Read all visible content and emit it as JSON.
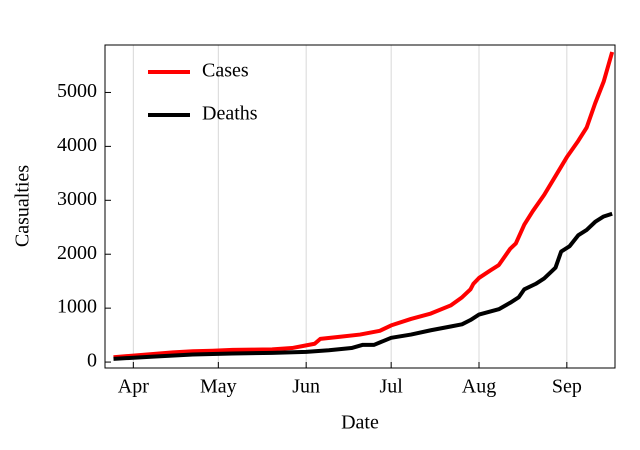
{
  "chart_data": {
    "type": "line",
    "x_label": "Date",
    "y_label": "Casualties",
    "xlim": [
      81,
      261
    ],
    "ylim": [
      -110,
      5880
    ],
    "xticks": [
      {
        "value": 91,
        "label": "Apr"
      },
      {
        "value": 121,
        "label": "May"
      },
      {
        "value": 152,
        "label": "Jun"
      },
      {
        "value": 182,
        "label": "Jul"
      },
      {
        "value": 213,
        "label": "Aug"
      },
      {
        "value": 244,
        "label": "Sep"
      }
    ],
    "yticks": [
      0,
      1000,
      2000,
      3000,
      4000,
      5000
    ],
    "grid": true,
    "legend": "upper left",
    "series": [
      {
        "name": "Cases",
        "color": "#ff0000",
        "x": [
          84,
          91,
          98,
          105,
          112,
          119,
          126,
          133,
          140,
          147,
          152,
          155,
          157,
          164,
          171,
          178,
          182,
          189,
          196,
          203,
          207,
          210,
          211,
          213,
          217,
          220,
          224,
          226,
          229,
          232,
          236,
          240,
          244,
          248,
          251,
          254,
          257,
          260
        ],
        "values": [
          90,
          120,
          150,
          180,
          200,
          210,
          225,
          230,
          235,
          260,
          310,
          340,
          430,
          470,
          510,
          580,
          680,
          800,
          900,
          1050,
          1200,
          1350,
          1450,
          1560,
          1700,
          1800,
          2100,
          2200,
          2550,
          2800,
          3100,
          3450,
          3800,
          4100,
          4350,
          4800,
          5200,
          5750
        ]
      },
      {
        "name": "Deaths",
        "color": "#000000",
        "x": [
          84,
          98,
          112,
          126,
          140,
          152,
          160,
          168,
          172,
          176,
          182,
          189,
          196,
          203,
          207,
          210,
          213,
          220,
          224,
          227,
          229,
          233,
          236,
          240,
          242,
          245,
          248,
          251,
          254,
          257,
          260
        ],
        "values": [
          60,
          100,
          140,
          160,
          170,
          190,
          220,
          260,
          320,
          320,
          450,
          510,
          590,
          660,
          700,
          780,
          880,
          980,
          1100,
          1200,
          1350,
          1450,
          1550,
          1750,
          2050,
          2150,
          2350,
          2450,
          2600,
          2700,
          2750
        ]
      }
    ]
  }
}
